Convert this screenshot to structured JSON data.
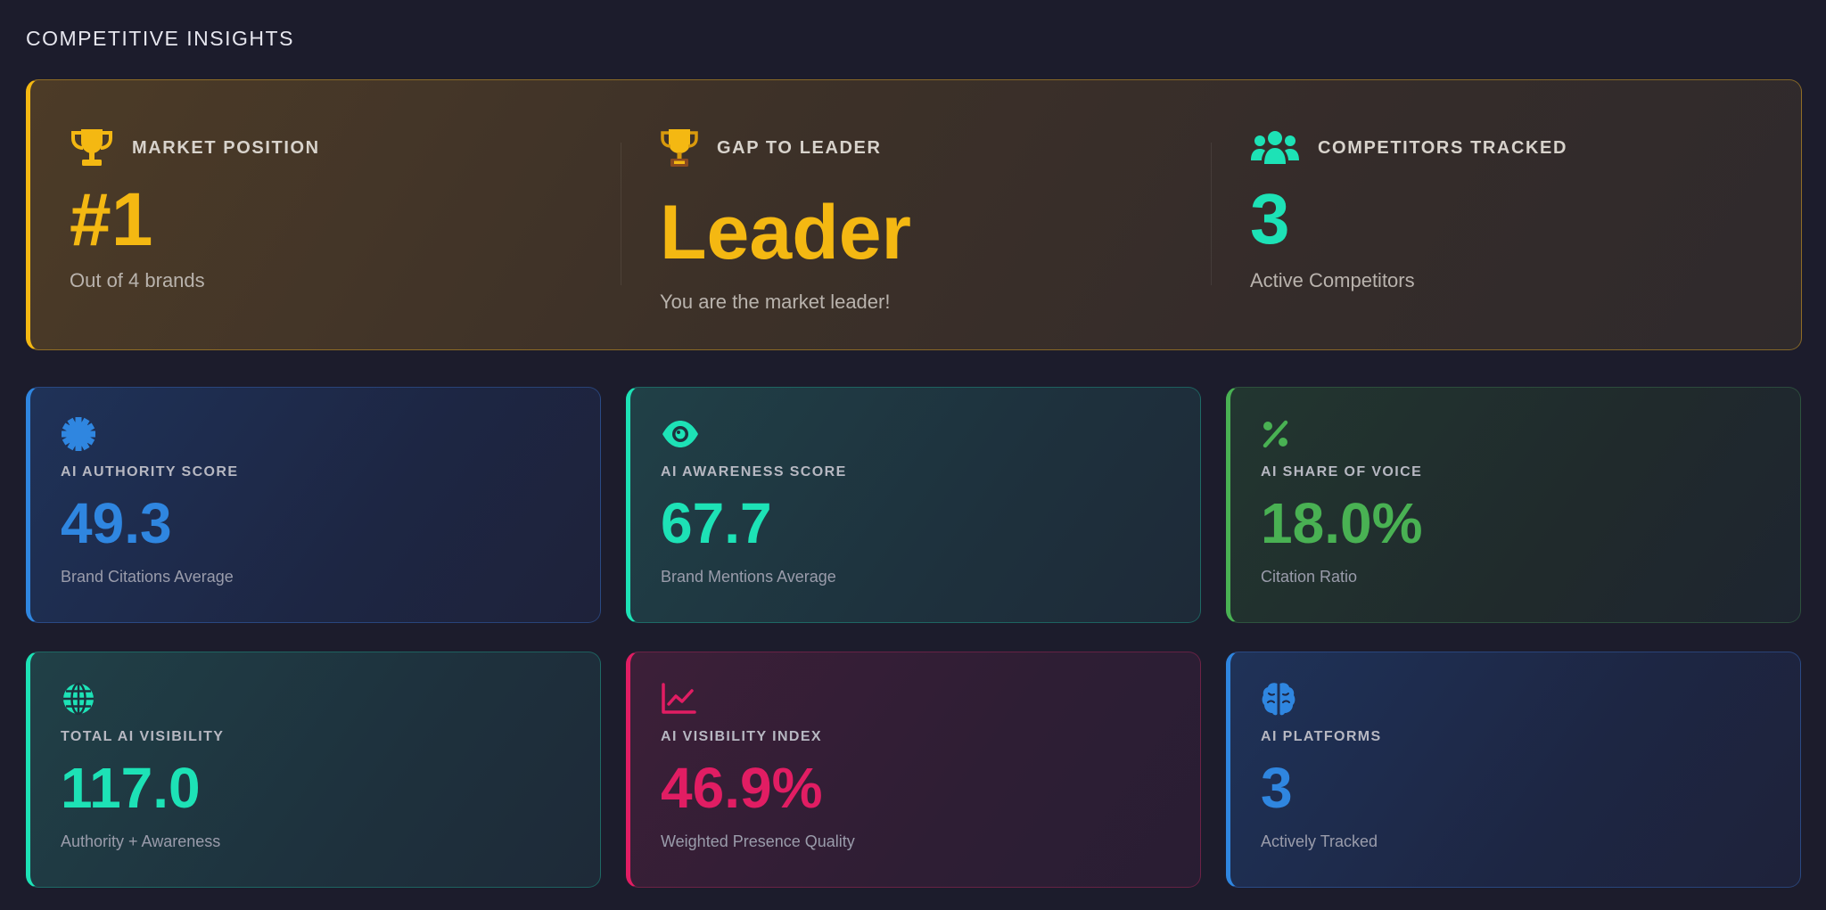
{
  "section_title": "COMPETITIVE INSIGHTS",
  "colors": {
    "gold": "#f4b812",
    "teal": "#1de2b6",
    "blue": "#2f86e0",
    "green": "#49b153",
    "pink": "#e11d63"
  },
  "insights": [
    {
      "icon": "trophy-icon",
      "label": "MARKET POSITION",
      "value": "#1",
      "sub": "Out of 4 brands"
    },
    {
      "icon": "trophy-emoji-icon",
      "label": "GAP TO LEADER",
      "value": "Leader",
      "sub": "You are the market leader!"
    },
    {
      "icon": "users-icon",
      "label": "COMPETITORS TRACKED",
      "value": "3",
      "sub": "Active Competitors"
    }
  ],
  "cards": [
    {
      "icon": "badge-icon",
      "label": "AI AUTHORITY SCORE",
      "value": "49.3",
      "sub": "Brand Citations Average"
    },
    {
      "icon": "eye-icon",
      "label": "AI AWARENESS SCORE",
      "value": "67.7",
      "sub": "Brand Mentions Average"
    },
    {
      "icon": "percent-icon",
      "label": "AI SHARE OF VOICE",
      "value": "18.0%",
      "sub": "Citation Ratio"
    },
    {
      "icon": "globe-icon",
      "label": "TOTAL AI VISIBILITY",
      "value": "117.0",
      "sub": "Authority + Awareness"
    },
    {
      "icon": "chart-line-icon",
      "label": "AI VISIBILITY INDEX",
      "value": "46.9%",
      "sub": "Weighted Presence Quality"
    },
    {
      "icon": "brain-icon",
      "label": "AI PLATFORMS",
      "value": "3",
      "sub": "Actively Tracked"
    }
  ]
}
